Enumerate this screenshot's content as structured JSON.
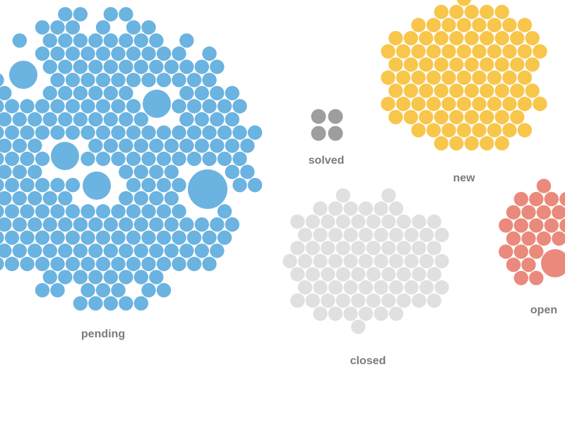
{
  "chart_data": {
    "type": "bubble-cluster",
    "groups": [
      {
        "name": "pending",
        "color": "#6bb3e0",
        "count": 337,
        "large_bubbles": 5
      },
      {
        "name": "new",
        "color": "#f7c64b",
        "count": 125,
        "large_bubbles": 0
      },
      {
        "name": "solved",
        "color": "#9e9e9e",
        "count": 4,
        "large_bubbles": 0
      },
      {
        "name": "closed",
        "color": "#e0e0e0",
        "count": 86,
        "large_bubbles": 0
      },
      {
        "name": "open",
        "color": "#ea8a7c",
        "count": 30,
        "large_bubbles": 1
      }
    ]
  }
}
